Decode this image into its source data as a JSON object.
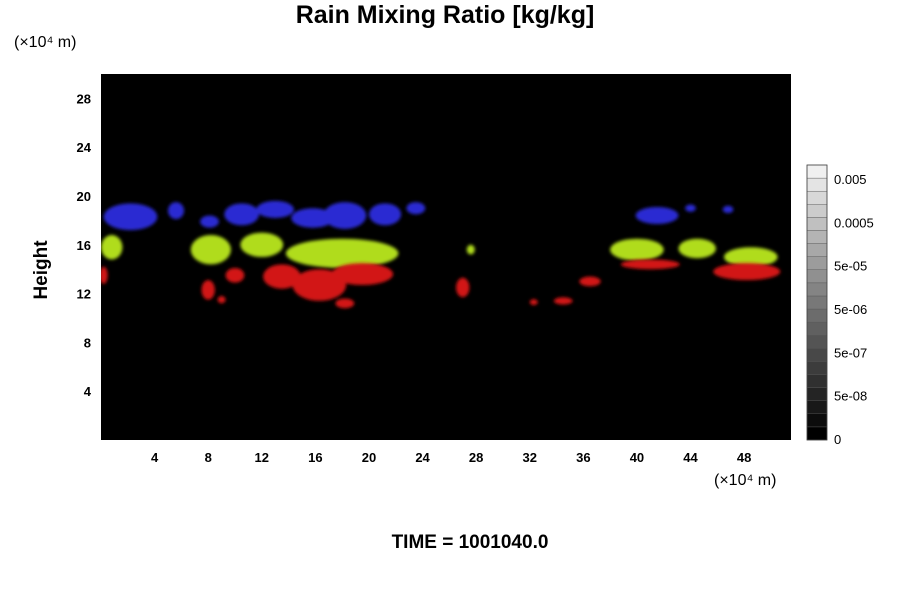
{
  "chart_data": {
    "type": "heatmap",
    "title": "Rain Mixing Ratio [kg/kg]",
    "ylabel": "Height",
    "x_unit": "(×10⁴ m)",
    "y_unit": "(×10⁴ m)",
    "xlim": [
      0,
      51.5
    ],
    "ylim": [
      0,
      30
    ],
    "x_ticks": [
      4,
      8,
      12,
      16,
      20,
      24,
      28,
      32,
      36,
      40,
      44,
      48
    ],
    "y_ticks": [
      4,
      8,
      12,
      16,
      20,
      24,
      28
    ],
    "background_color": "#000000",
    "colorbar": {
      "tick_labels": [
        "0.005",
        "0.0005",
        "5e-05",
        "5e-06",
        "5e-07",
        "5e-08",
        "0"
      ],
      "levels": 21
    },
    "layers": [
      {
        "color": "#2a2ad2",
        "blobs": [
          {
            "x": 2.2,
            "y": 18.3,
            "rx": 2.0,
            "ry": 1.1
          },
          {
            "x": 5.6,
            "y": 18.8,
            "rx": 0.6,
            "ry": 0.7
          },
          {
            "x": 8.1,
            "y": 17.9,
            "rx": 0.7,
            "ry": 0.5
          },
          {
            "x": 10.5,
            "y": 18.5,
            "rx": 1.3,
            "ry": 0.9
          },
          {
            "x": 13.0,
            "y": 18.9,
            "rx": 1.4,
            "ry": 0.7
          },
          {
            "x": 15.8,
            "y": 18.2,
            "rx": 1.6,
            "ry": 0.8
          },
          {
            "x": 18.2,
            "y": 18.4,
            "rx": 1.6,
            "ry": 1.1
          },
          {
            "x": 21.2,
            "y": 18.5,
            "rx": 1.2,
            "ry": 0.9
          },
          {
            "x": 23.5,
            "y": 19.0,
            "rx": 0.7,
            "ry": 0.5
          },
          {
            "x": 41.5,
            "y": 18.4,
            "rx": 1.6,
            "ry": 0.7
          },
          {
            "x": 44.0,
            "y": 19.0,
            "rx": 0.4,
            "ry": 0.3
          },
          {
            "x": 46.8,
            "y": 18.9,
            "rx": 0.4,
            "ry": 0.3
          }
        ]
      },
      {
        "color": "#b0dc1e",
        "blobs": [
          {
            "x": 0.8,
            "y": 15.8,
            "rx": 0.8,
            "ry": 1.0
          },
          {
            "x": 8.2,
            "y": 15.6,
            "rx": 1.5,
            "ry": 1.2
          },
          {
            "x": 12.0,
            "y": 16.0,
            "rx": 1.6,
            "ry": 1.0
          },
          {
            "x": 18.0,
            "y": 15.3,
            "rx": 4.2,
            "ry": 1.2
          },
          {
            "x": 27.6,
            "y": 15.6,
            "rx": 0.3,
            "ry": 0.4
          },
          {
            "x": 40.0,
            "y": 15.6,
            "rx": 2.0,
            "ry": 0.9
          },
          {
            "x": 44.5,
            "y": 15.7,
            "rx": 1.4,
            "ry": 0.8
          },
          {
            "x": 48.5,
            "y": 15.0,
            "rx": 2.0,
            "ry": 0.8
          }
        ]
      },
      {
        "color": "#d21414",
        "blobs": [
          {
            "x": 0.2,
            "y": 13.5,
            "rx": 0.3,
            "ry": 0.7
          },
          {
            "x": 8.0,
            "y": 12.3,
            "rx": 0.5,
            "ry": 0.8
          },
          {
            "x": 9.0,
            "y": 11.5,
            "rx": 0.3,
            "ry": 0.3
          },
          {
            "x": 10.0,
            "y": 13.5,
            "rx": 0.7,
            "ry": 0.6
          },
          {
            "x": 13.5,
            "y": 13.4,
            "rx": 1.4,
            "ry": 1.0
          },
          {
            "x": 16.3,
            "y": 12.7,
            "rx": 2.0,
            "ry": 1.3
          },
          {
            "x": 19.5,
            "y": 13.6,
            "rx": 2.3,
            "ry": 0.9
          },
          {
            "x": 18.2,
            "y": 11.2,
            "rx": 0.7,
            "ry": 0.4
          },
          {
            "x": 27.0,
            "y": 12.5,
            "rx": 0.5,
            "ry": 0.8
          },
          {
            "x": 32.3,
            "y": 11.3,
            "rx": 0.3,
            "ry": 0.25
          },
          {
            "x": 34.5,
            "y": 11.4,
            "rx": 0.7,
            "ry": 0.3
          },
          {
            "x": 36.5,
            "y": 13.0,
            "rx": 0.8,
            "ry": 0.4
          },
          {
            "x": 41.0,
            "y": 14.4,
            "rx": 2.2,
            "ry": 0.4
          },
          {
            "x": 48.2,
            "y": 13.8,
            "rx": 2.5,
            "ry": 0.7
          }
        ]
      }
    ]
  },
  "footer": {
    "time_label": "TIME = 1001040.0"
  }
}
